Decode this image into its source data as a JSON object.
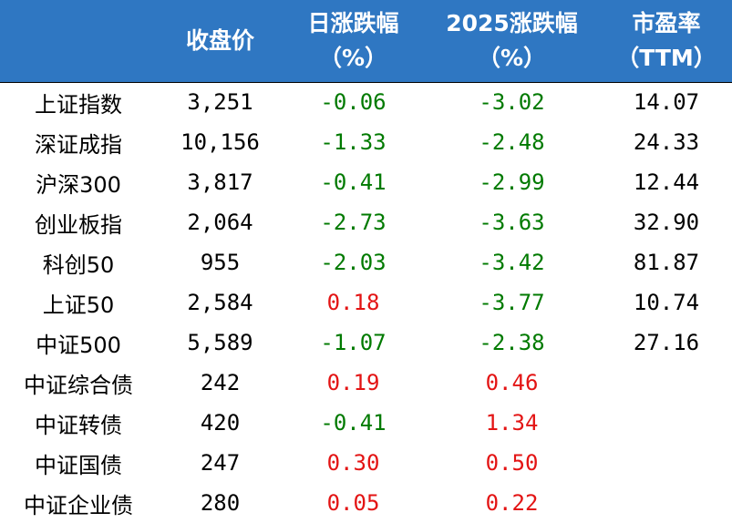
{
  "header": {
    "col_name": "",
    "col_close": "收盘价",
    "col_day_1": "日涨跌幅",
    "col_day_2": "（%）",
    "col_ytd_1": "2025涨跌幅",
    "col_ytd_2": "（%）",
    "col_pe_1": "市盈率",
    "col_pe_2": "（TTM）"
  },
  "colors": {
    "header_bg": "#2f77c2",
    "negative": "#007a00",
    "positive": "#e31414"
  },
  "rows": [
    {
      "name": "上证指数",
      "close": "3,251",
      "day": "-0.06",
      "ytd": "-3.02",
      "pe": "14.07"
    },
    {
      "name": "深证成指",
      "close": "10,156",
      "day": "-1.33",
      "ytd": "-2.48",
      "pe": "24.33"
    },
    {
      "name": "沪深300",
      "close": "3,817",
      "day": "-0.41",
      "ytd": "-2.99",
      "pe": "12.44"
    },
    {
      "name": "创业板指",
      "close": "2,064",
      "day": "-2.73",
      "ytd": "-3.63",
      "pe": "32.90"
    },
    {
      "name": "科创50",
      "close": "955",
      "day": "-2.03",
      "ytd": "-3.42",
      "pe": "81.87"
    },
    {
      "name": "上证50",
      "close": "2,584",
      "day": "0.18",
      "ytd": "-3.77",
      "pe": "10.74"
    },
    {
      "name": "中证500",
      "close": "5,589",
      "day": "-1.07",
      "ytd": "-2.38",
      "pe": "27.16"
    },
    {
      "name": "中证综合债",
      "close": "242",
      "day": "0.19",
      "ytd": "0.46",
      "pe": ""
    },
    {
      "name": "中证转债",
      "close": "420",
      "day": "-0.41",
      "ytd": "1.34",
      "pe": ""
    },
    {
      "name": "中证国债",
      "close": "247",
      "day": "0.30",
      "ytd": "0.50",
      "pe": ""
    },
    {
      "name": "中证企业债",
      "close": "280",
      "day": "0.05",
      "ytd": "0.22",
      "pe": ""
    }
  ]
}
